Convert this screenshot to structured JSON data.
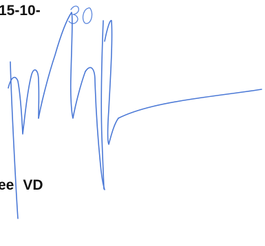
{
  "document": {
    "date_fragment": "15-10-",
    "handwritten_day": "30",
    "signer_first": "ee",
    "signer_second": "VD"
  },
  "colors": {
    "ink_blue": "#4a78d6",
    "print_black": "#111111",
    "background": "#ffffff"
  }
}
